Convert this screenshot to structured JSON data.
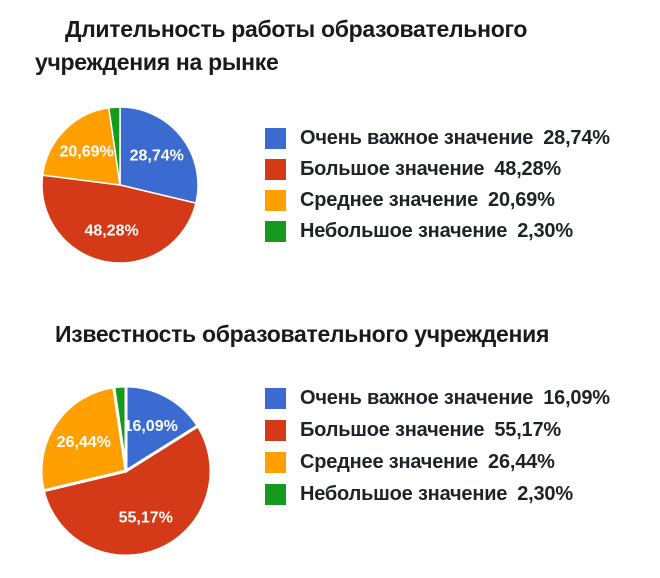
{
  "page": {
    "background_color": "#ffffff",
    "title_color": "#1a1a1a",
    "legend_text_color": "#1f2328",
    "slice_label_color": "#ffffff"
  },
  "chart_data": [
    {
      "type": "pie",
      "title": "Длительность работы образовательного\nучреждения на рынке",
      "labels": [
        "Очень важное значение",
        "Большое значение",
        "Среднее значение",
        "Небольшое значение"
      ],
      "values": [
        28.74,
        48.28,
        20.69,
        2.3
      ],
      "value_labels": [
        "28,74%",
        "48,28%",
        "20,69%",
        "2,30%"
      ],
      "colors": [
        "#3b6bd1",
        "#d43a18",
        "#ffa000",
        "#169a1e"
      ],
      "legend_position": "right",
      "start_angle_deg": 0,
      "direction": "clockwise",
      "slice_labels_on_chart": [
        "28,74%",
        "48,28%",
        "20,69%"
      ]
    },
    {
      "type": "pie",
      "title": "Известность образовательного учреждения",
      "labels": [
        "Очень важное значение",
        "Большое значение",
        "Среднее значение",
        "Небольшое значение"
      ],
      "values": [
        16.09,
        55.17,
        26.44,
        2.3
      ],
      "value_labels": [
        "16,09%",
        "55,17%",
        "26,44%",
        "2,30%"
      ],
      "colors": [
        "#3b6bd1",
        "#d43a18",
        "#ffa000",
        "#169a1e"
      ],
      "legend_position": "right",
      "start_angle_deg": 0,
      "direction": "clockwise",
      "slice_labels_on_chart": [
        "16,09%",
        "55,17%",
        "26,44%"
      ]
    }
  ]
}
